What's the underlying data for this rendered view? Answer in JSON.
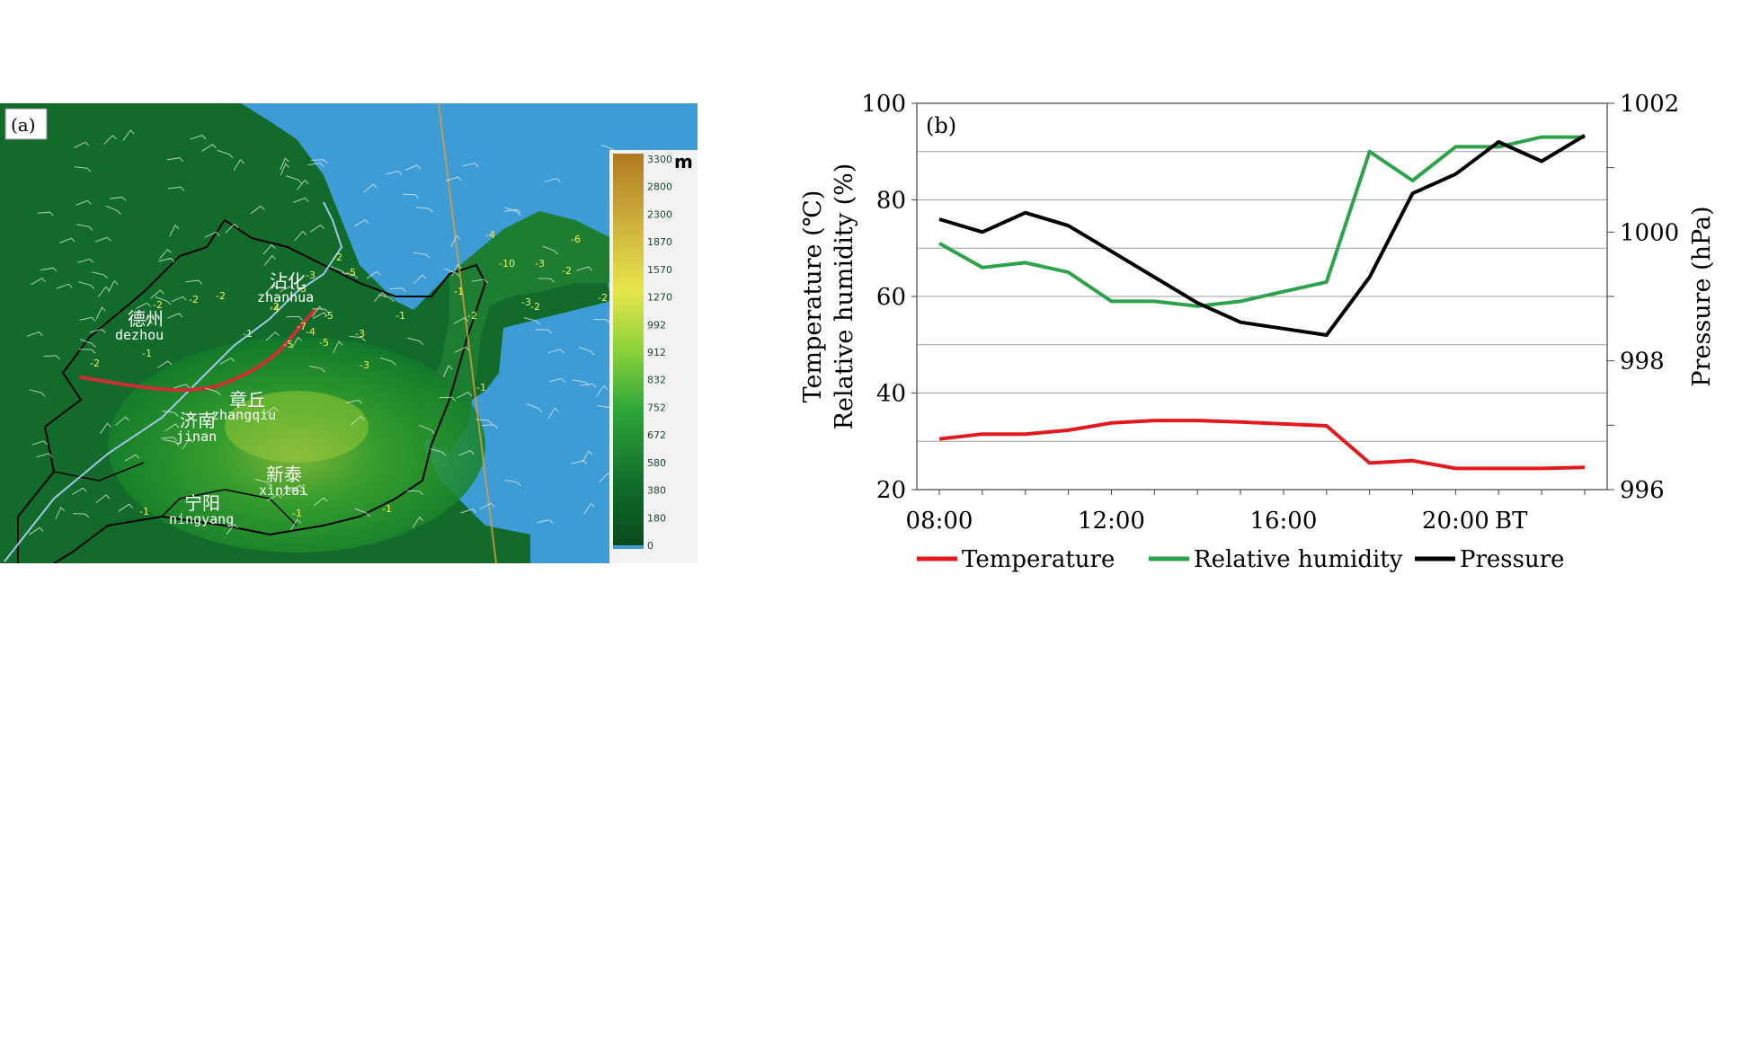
{
  "panel_a": {
    "label": "(a)",
    "cities": [
      {
        "cn": "德州",
        "en": "dezhou"
      },
      {
        "cn": "沾化",
        "en": "zhanhua"
      },
      {
        "cn": "章丘",
        "en": "zhangqiu"
      },
      {
        "cn": "济南",
        "en": "jinan"
      },
      {
        "cn": "新泰",
        "en": "xintai"
      },
      {
        "cn": "宁阳",
        "en": "ningyang"
      }
    ],
    "value_labels": [
      "-2",
      "-1",
      "-2",
      "-2",
      "-1",
      "-2",
      "-2",
      "-3",
      "-5",
      "-3",
      "-4",
      "-4",
      "-5",
      "-2",
      "-5",
      "-7",
      "-5",
      "-3",
      "-1",
      "-3",
      "-1",
      "-1",
      "-2",
      "-1",
      "-2",
      "-10",
      "-3",
      "-6",
      "-2",
      "-2",
      "-4",
      "-3",
      "-1",
      "-1",
      "-1"
    ],
    "colorbar": {
      "unit": "m",
      "ticks": [
        "3300",
        "2800",
        "2300",
        "1870",
        "1570",
        "1270",
        "992",
        "912",
        "832",
        "752",
        "672",
        "580",
        "380",
        "180",
        "0"
      ]
    }
  },
  "panel_b": {
    "label": "(b)"
  },
  "chart_data": {
    "type": "line",
    "x": [
      "08:00",
      "09:00",
      "10:00",
      "11:00",
      "12:00",
      "13:00",
      "14:00",
      "15:00",
      "16:00",
      "17:00",
      "18:00",
      "19:00",
      "20:00",
      "21:00",
      "22:00",
      "23:00"
    ],
    "xticks": [
      "08:00",
      "12:00",
      "16:00",
      "20:00"
    ],
    "xtick_suffix": "BT",
    "ylabel_left": [
      "Temperature (℃)",
      "Relative humidity (%)"
    ],
    "ylabel_right": "Pressure (hPa)",
    "ylim_left": [
      20,
      100
    ],
    "yticks_left": [
      "20",
      "40",
      "60",
      "80",
      "100"
    ],
    "ylim_right": [
      996,
      1002
    ],
    "yticks_right": [
      "996",
      "998",
      "1000",
      "1002"
    ],
    "grid": true,
    "legend_position": "bottom",
    "series": [
      {
        "name": "Temperature",
        "axis": "left",
        "color": "#e31a1c",
        "values": [
          30.5,
          31.5,
          31.5,
          32.3,
          33.8,
          34.3,
          34.3,
          34.0,
          33.6,
          33.2,
          25.5,
          26.0,
          24.4,
          24.4,
          24.4,
          24.6
        ]
      },
      {
        "name": "Relative humidity",
        "axis": "left",
        "color": "#2ca34a",
        "values": [
          71,
          66,
          67,
          65,
          59,
          59,
          58,
          59,
          61,
          63,
          90,
          84,
          91,
          91,
          93,
          93
        ]
      },
      {
        "name": "Pressure",
        "axis": "right",
        "color": "#000000",
        "values": [
          1000.2,
          1000.0,
          1000.3,
          1000.1,
          999.7,
          999.3,
          998.9,
          998.6,
          998.5,
          998.4,
          999.3,
          1000.6,
          1000.9,
          1001.4,
          1001.1,
          1001.5
        ]
      }
    ]
  },
  "colors": {
    "sea": "#3d9bd6",
    "land_low": "#0f6b2a",
    "land_mid": "#3aa62c",
    "land_high": "#d8d24a",
    "frontline": "#c83232",
    "grid": "#9e9e9e"
  }
}
